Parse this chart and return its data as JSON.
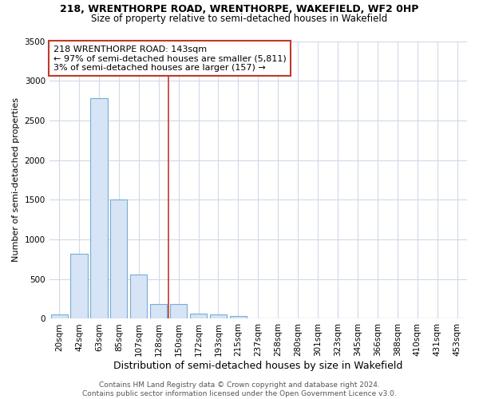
{
  "title1": "218, WRENTHORPE ROAD, WRENTHORPE, WAKEFIELD, WF2 0HP",
  "title2": "Size of property relative to semi-detached houses in Wakefield",
  "xlabel": "Distribution of semi-detached houses by size in Wakefield",
  "ylabel": "Number of semi-detached properties",
  "categories": [
    "20sqm",
    "42sqm",
    "63sqm",
    "85sqm",
    "107sqm",
    "128sqm",
    "150sqm",
    "172sqm",
    "193sqm",
    "215sqm",
    "237sqm",
    "258sqm",
    "280sqm",
    "301sqm",
    "323sqm",
    "345sqm",
    "366sqm",
    "388sqm",
    "410sqm",
    "431sqm",
    "453sqm"
  ],
  "values": [
    55,
    820,
    2780,
    1500,
    555,
    185,
    185,
    60,
    50,
    35,
    0,
    0,
    0,
    0,
    0,
    0,
    0,
    0,
    0,
    0,
    0
  ],
  "bar_color": "#d6e4f5",
  "bar_edge_color": "#7aadd4",
  "vline_x_index": 6,
  "vline_color": "#c0392b",
  "annotation_text": "218 WRENTHORPE ROAD: 143sqm\n← 97% of semi-detached houses are smaller (5,811)\n3% of semi-detached houses are larger (157) →",
  "annotation_box_color": "#ffffff",
  "annotation_box_edge": "#c0392b",
  "ylim": [
    0,
    3500
  ],
  "yticks": [
    0,
    500,
    1000,
    1500,
    2000,
    2500,
    3000,
    3500
  ],
  "footer": "Contains HM Land Registry data © Crown copyright and database right 2024.\nContains public sector information licensed under the Open Government Licence v3.0.",
  "bg_color": "#ffffff",
  "plot_bg_color": "#ffffff",
  "grid_color": "#d0dae8",
  "title1_fontsize": 9,
  "title2_fontsize": 8.5,
  "xlabel_fontsize": 9,
  "ylabel_fontsize": 8,
  "footer_fontsize": 6.5,
  "tick_fontsize": 7.5
}
